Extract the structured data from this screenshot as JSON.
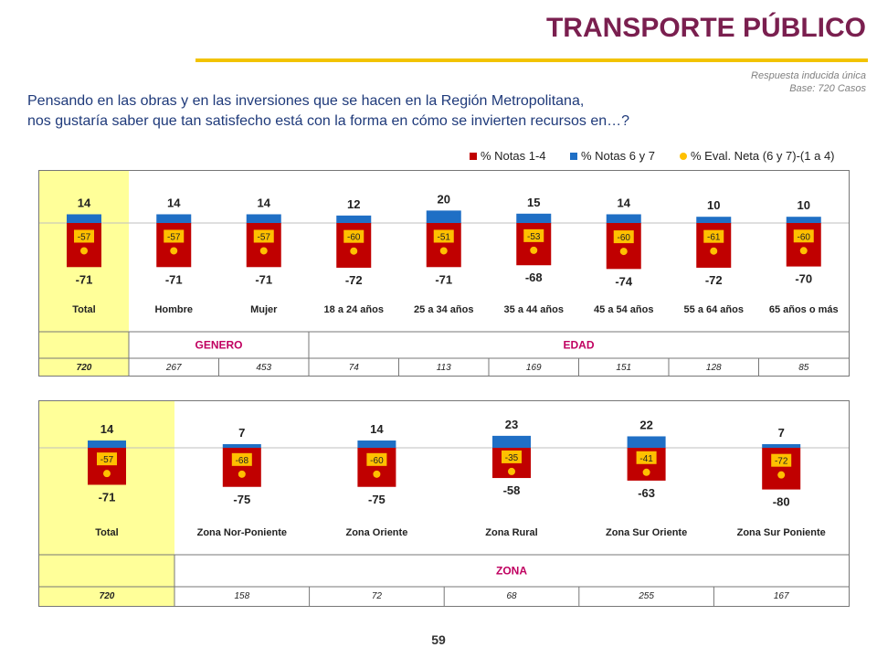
{
  "header": {
    "title": "TRANSPORTE PÚBLICO",
    "note_line1": "Respuesta inducida única",
    "note_line2": "Base: 720 Casos",
    "question_line1": "Pensando en las obras y en las inversiones que se hacen en la Región Metropolitana,",
    "question_line2": "nos gustaría saber que tan satisfecho está con la forma en cómo se invierten recursos en…?"
  },
  "legend": {
    "red_label": "% Notas 1-4",
    "blue_label": "% Notas 6 y 7",
    "dot_label": "% Eval. Neta (6 y 7)-(1 a 4)"
  },
  "colors": {
    "negative": "#c00000",
    "positive": "#1f6fc5",
    "net_box": "#ffc000",
    "dot": "#ffc000",
    "highlight": "#ffff99",
    "group_label": "#c00060",
    "title": "#7a1f4f"
  },
  "page_number": "59",
  "chart_data": [
    {
      "type": "bar",
      "categories": [
        "Total",
        "Hombre",
        "Mujer",
        "18 a 24 años",
        "25 a 34 años",
        "35 a 44 años",
        "45 a 54 años",
        "55 a 64 años",
        "65 años o más"
      ],
      "series": [
        {
          "name": "% Notas 1-4",
          "values": [
            -71,
            -71,
            -71,
            -72,
            -71,
            -68,
            -74,
            -72,
            -70
          ]
        },
        {
          "name": "% Notas 6 y 7",
          "values": [
            14,
            14,
            14,
            12,
            20,
            15,
            14,
            10,
            10
          ]
        },
        {
          "name": "% Eval. Neta (6 y 7)-(1 a 4)",
          "values": [
            -57,
            -57,
            -57,
            -60,
            -51,
            -53,
            -60,
            -61,
            -60
          ]
        }
      ],
      "groups": [
        {
          "label": "",
          "span": 1
        },
        {
          "label": "GENERO",
          "span": 2
        },
        {
          "label": "EDAD",
          "span": 6
        }
      ],
      "bases": [
        "720",
        "267",
        "453",
        "74",
        "113",
        "169",
        "151",
        "128",
        "85"
      ]
    },
    {
      "type": "bar",
      "categories": [
        "Total",
        "Zona Nor-Poniente",
        "Zona Oriente",
        "Zona Rural",
        "Zona Sur Oriente",
        "Zona Sur Poniente"
      ],
      "series": [
        {
          "name": "% Notas 1-4",
          "values": [
            -71,
            -75,
            -75,
            -58,
            -63,
            -80
          ]
        },
        {
          "name": "% Notas 6 y 7",
          "values": [
            14,
            7,
            14,
            23,
            22,
            7
          ]
        },
        {
          "name": "% Eval. Neta (6 y 7)-(1 a 4)",
          "values": [
            -57,
            -68,
            -60,
            -35,
            -41,
            -72
          ]
        }
      ],
      "groups": [
        {
          "label": "",
          "span": 1
        },
        {
          "label": "ZONA",
          "span": 5
        }
      ],
      "bases": [
        "720",
        "158",
        "72",
        "68",
        "255",
        "167"
      ]
    }
  ]
}
